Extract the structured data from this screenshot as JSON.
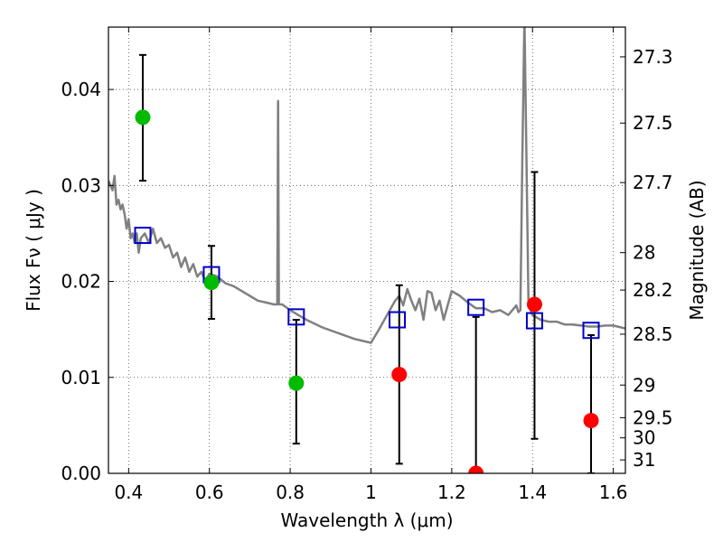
{
  "chart_data": {
    "type": "scatter",
    "xlabel": "Wavelength  λ (μm)",
    "ylabel": "Flux  Fν  ( μJy )",
    "ylabel_right": "Magnitude (AB)",
    "xlim": [
      0.35,
      1.63
    ],
    "ylim": [
      0.0,
      0.0465
    ],
    "grid": true,
    "x_ticks": [
      0.4,
      0.6,
      0.8,
      1.0,
      1.2,
      1.4,
      1.6
    ],
    "x_tick_labels": [
      "0.4",
      "0.6",
      "0.8",
      "1",
      "1.2",
      "1.4",
      "1.6"
    ],
    "y_ticks": [
      0.0,
      0.01,
      0.02,
      0.03,
      0.04
    ],
    "y_tick_labels": [
      "0.00",
      "0.01",
      "0.02",
      "0.03",
      "0.04"
    ],
    "right_ticks": [
      {
        "label": "27.3",
        "flux": 0.0434
      },
      {
        "label": "27.5",
        "flux": 0.0365
      },
      {
        "label": "27.7",
        "flux": 0.0303
      },
      {
        "label": "28",
        "flux": 0.023
      },
      {
        "label": "28.2",
        "flux": 0.0191
      },
      {
        "label": "28.5",
        "flux": 0.0145
      },
      {
        "label": "29",
        "flux": 0.0092
      },
      {
        "label": "29.5",
        "flux": 0.0058
      },
      {
        "label": "30",
        "flux": 0.0037
      },
      {
        "label": "31",
        "flux": 0.0014
      }
    ],
    "series": [
      {
        "kind": "line",
        "color": "#808080",
        "x": [
          0.35,
          0.36,
          0.365,
          0.37,
          0.375,
          0.38,
          0.385,
          0.39,
          0.395,
          0.4,
          0.405,
          0.41,
          0.415,
          0.42,
          0.425,
          0.43,
          0.44,
          0.45,
          0.46,
          0.47,
          0.48,
          0.49,
          0.5,
          0.51,
          0.52,
          0.53,
          0.54,
          0.55,
          0.56,
          0.57,
          0.58,
          0.59,
          0.6,
          0.62,
          0.64,
          0.66,
          0.68,
          0.7,
          0.72,
          0.74,
          0.76,
          0.768,
          0.77,
          0.772,
          0.78,
          0.8,
          0.84,
          0.88,
          0.92,
          0.96,
          0.98,
          1.0,
          1.02,
          1.04,
          1.06,
          1.07,
          1.08,
          1.09,
          1.1,
          1.11,
          1.12,
          1.13,
          1.14,
          1.15,
          1.16,
          1.17,
          1.18,
          1.2,
          1.22,
          1.24,
          1.26,
          1.28,
          1.3,
          1.32,
          1.34,
          1.35,
          1.36,
          1.365,
          1.37,
          1.375,
          1.38,
          1.385,
          1.39,
          1.4,
          1.42,
          1.44,
          1.46,
          1.48,
          1.5,
          1.52,
          1.54,
          1.56,
          1.58,
          1.6,
          1.62,
          1.63
        ],
        "y": [
          0.0305,
          0.0295,
          0.031,
          0.028,
          0.0285,
          0.0275,
          0.028,
          0.027,
          0.0255,
          0.0265,
          0.0245,
          0.025,
          0.024,
          0.025,
          0.023,
          0.0245,
          0.025,
          0.024,
          0.0255,
          0.024,
          0.0245,
          0.0235,
          0.0238,
          0.0225,
          0.023,
          0.0215,
          0.0225,
          0.021,
          0.0218,
          0.0205,
          0.021,
          0.02,
          0.0208,
          0.0205,
          0.0198,
          0.0195,
          0.019,
          0.0185,
          0.018,
          0.0178,
          0.0176,
          0.0176,
          0.0388,
          0.0176,
          0.0176,
          0.017,
          0.016,
          0.0152,
          0.0146,
          0.014,
          0.0138,
          0.0136,
          0.015,
          0.0165,
          0.018,
          0.0185,
          0.0175,
          0.0192,
          0.018,
          0.017,
          0.0182,
          0.016,
          0.019,
          0.0188,
          0.017,
          0.018,
          0.016,
          0.019,
          0.0185,
          0.0178,
          0.0172,
          0.0172,
          0.0168,
          0.017,
          0.0165,
          0.017,
          0.0175,
          0.0168,
          0.017,
          0.033,
          0.0475,
          0.033,
          0.0175,
          0.0165,
          0.016,
          0.0158,
          0.0158,
          0.0155,
          0.0155,
          0.0154,
          0.0153,
          0.0153,
          0.0154,
          0.0154,
          0.0152,
          0.0151
        ]
      },
      {
        "kind": "points",
        "marker": "circle",
        "color": "#00bb00",
        "x": [
          0.435,
          0.605,
          0.815
        ],
        "y": [
          0.0371,
          0.0199,
          0.0094
        ],
        "yerr_low": [
          0.0305,
          0.0161,
          0.0031
        ],
        "yerr_high": [
          0.0436,
          0.0237,
          0.016
        ]
      },
      {
        "kind": "points",
        "marker": "circle",
        "color": "#ff0000",
        "x": [
          1.07,
          1.26,
          1.405,
          1.545
        ],
        "y": [
          0.0103,
          0.0,
          0.0176,
          0.0055
        ],
        "yerr_low": [
          0.001,
          0.0,
          0.0036,
          0.0
        ],
        "yerr_high": [
          0.0196,
          0.0163,
          0.0314,
          0.0144
        ]
      },
      {
        "kind": "points",
        "marker": "square",
        "color": "#0000cc",
        "x": [
          0.435,
          0.605,
          0.815,
          1.065,
          1.26,
          1.405,
          1.545
        ],
        "y": [
          0.0248,
          0.0207,
          0.0163,
          0.016,
          0.0173,
          0.0159,
          0.0149
        ]
      }
    ]
  }
}
